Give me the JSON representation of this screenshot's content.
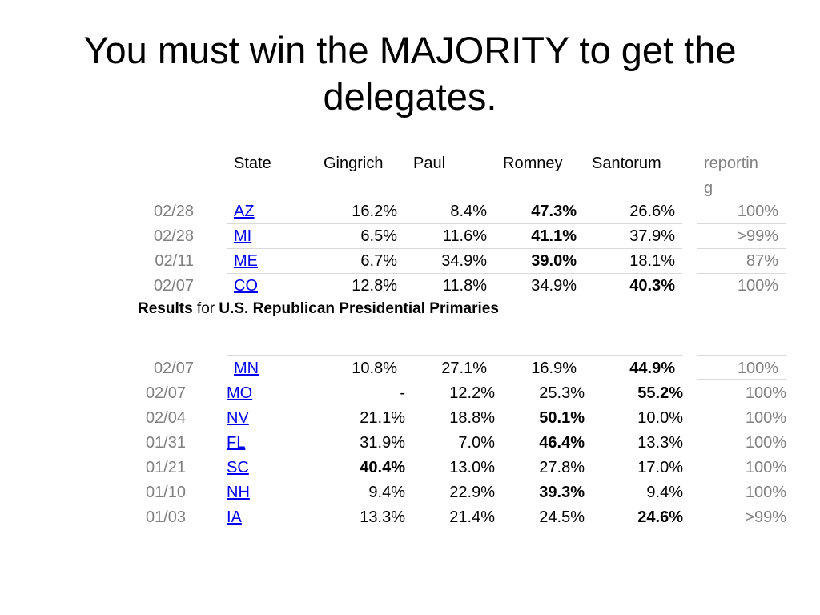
{
  "title": "You must win the MAJORITY to get the delegates.",
  "headers": {
    "state": "State",
    "gingrich": "Gingrich",
    "paul": "Paul",
    "romney": "Romney",
    "santorum": "Santorum",
    "reporting_line1": "reportin",
    "reporting_line2": "g"
  },
  "caption": {
    "bold1": "Results",
    "plain": " for ",
    "bold2": "U.S. Republican Presidential Primaries"
  },
  "accent_colors": {
    "link": "#0000ee",
    "muted": "#808080",
    "rule": "#d9d9d9"
  },
  "rows_top": [
    {
      "date": "02/28",
      "state": "AZ",
      "gingrich": "16.2%",
      "paul": "8.4%",
      "romney": "47.3%",
      "santorum": "26.6%",
      "reporting": "100%",
      "winner": "romney"
    },
    {
      "date": "02/28",
      "state": "MI",
      "gingrich": "6.5%",
      "paul": "11.6%",
      "romney": "41.1%",
      "santorum": "37.9%",
      "reporting": ">99%",
      "winner": "romney"
    },
    {
      "date": "02/11",
      "state": "ME",
      "gingrich": "6.7%",
      "paul": "34.9%",
      "romney": "39.0%",
      "santorum": "18.1%",
      "reporting": "87%",
      "winner": "romney"
    },
    {
      "date": "02/07",
      "state": "CO",
      "gingrich": "12.8%",
      "paul": "11.8%",
      "romney": "34.9%",
      "santorum": "40.3%",
      "reporting": "100%",
      "winner": "santorum"
    }
  ],
  "row_mn": {
    "date": "02/07",
    "state": "MN",
    "gingrich": "10.8%",
    "paul": "27.1%",
    "romney": "16.9%",
    "santorum": "44.9%",
    "reporting": "100%",
    "winner": "santorum"
  },
  "rows_bottom": [
    {
      "date": "02/07",
      "state": "MO",
      "gingrich": "-",
      "paul": "12.2%",
      "romney": "25.3%",
      "santorum": "55.2%",
      "reporting": "100%",
      "winner": "santorum"
    },
    {
      "date": "02/04",
      "state": "NV",
      "gingrich": "21.1%",
      "paul": "18.8%",
      "romney": "50.1%",
      "santorum": "10.0%",
      "reporting": "100%",
      "winner": "romney"
    },
    {
      "date": "01/31",
      "state": "FL",
      "gingrich": "31.9%",
      "paul": "7.0%",
      "romney": "46.4%",
      "santorum": "13.3%",
      "reporting": "100%",
      "winner": "romney"
    },
    {
      "date": "01/21",
      "state": "SC",
      "gingrich": "40.4%",
      "paul": "13.0%",
      "romney": "27.8%",
      "santorum": "17.0%",
      "reporting": "100%",
      "winner": "gingrich"
    },
    {
      "date": "01/10",
      "state": "NH",
      "gingrich": "9.4%",
      "paul": "22.9%",
      "romney": "39.3%",
      "santorum": "9.4%",
      "reporting": "100%",
      "winner": "romney"
    },
    {
      "date": "01/03",
      "state": "IA",
      "gingrich": "13.3%",
      "paul": "21.4%",
      "romney": "24.5%",
      "santorum": "24.6%",
      "reporting": ">99%",
      "winner": "santorum"
    }
  ]
}
